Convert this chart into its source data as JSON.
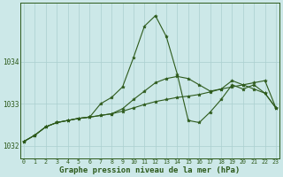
{
  "title": "Graphe pression niveau de la mer (hPa)",
  "bg_color": "#cce8e8",
  "line_color": "#2d5a1b",
  "grid_color": "#aacfcf",
  "xlim": [
    -0.3,
    23.3
  ],
  "ylim": [
    1031.7,
    1035.4
  ],
  "yticks": [
    1032,
    1033,
    1034
  ],
  "xticks": [
    0,
    1,
    2,
    3,
    4,
    5,
    6,
    7,
    8,
    9,
    10,
    11,
    12,
    13,
    14,
    15,
    16,
    17,
    18,
    19,
    20,
    21,
    22,
    23
  ],
  "series1_x": [
    0,
    1,
    2,
    3,
    4,
    5,
    6,
    7,
    8,
    9,
    10,
    11,
    12,
    13,
    14,
    15,
    16,
    17,
    18,
    19,
    20,
    21,
    22,
    23
  ],
  "series1_y": [
    1032.1,
    1032.25,
    1032.45,
    1032.55,
    1032.6,
    1032.65,
    1032.68,
    1032.72,
    1032.76,
    1032.82,
    1032.9,
    1032.98,
    1033.05,
    1033.1,
    1033.15,
    1033.18,
    1033.22,
    1033.28,
    1033.35,
    1033.4,
    1033.45,
    1033.5,
    1033.55,
    1032.9
  ],
  "series2_x": [
    0,
    1,
    2,
    3,
    4,
    5,
    6,
    7,
    8,
    9,
    10,
    11,
    12,
    13,
    14,
    15,
    16,
    17,
    18,
    19,
    20,
    21,
    22,
    23
  ],
  "series2_y": [
    1032.1,
    1032.25,
    1032.45,
    1032.55,
    1032.6,
    1032.65,
    1032.68,
    1032.72,
    1032.76,
    1032.88,
    1033.1,
    1033.3,
    1033.5,
    1033.6,
    1033.65,
    1033.6,
    1033.45,
    1033.3,
    1033.35,
    1033.55,
    1033.45,
    1033.35,
    1033.25,
    1032.9
  ],
  "series3_x": [
    0,
    1,
    2,
    3,
    4,
    5,
    6,
    7,
    8,
    9,
    10,
    11,
    12,
    13,
    14,
    15,
    16,
    17,
    18,
    19,
    20,
    21,
    22,
    23
  ],
  "series3_y": [
    1032.1,
    1032.25,
    1032.45,
    1032.55,
    1032.6,
    1032.65,
    1032.68,
    1033.0,
    1033.15,
    1033.4,
    1034.1,
    1034.85,
    1035.1,
    1034.6,
    1033.7,
    1032.6,
    1032.55,
    1032.8,
    1033.1,
    1033.45,
    1033.35,
    1033.45,
    1033.25,
    1032.9
  ],
  "xlabel_fontsize": 6.5,
  "ylabel_fontsize": 6,
  "title_fontsize": 6.5
}
